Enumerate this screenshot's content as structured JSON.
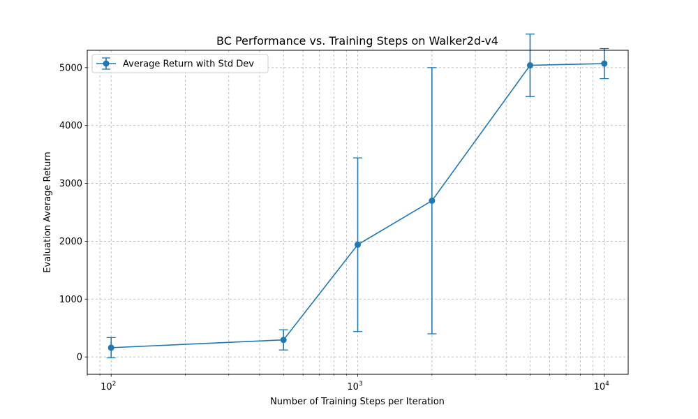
{
  "chart_data": {
    "type": "line",
    "title": "BC Performance vs. Training Steps on Walker2d-v4",
    "xlabel": "Number of Training Steps per Iteration",
    "ylabel": "Evaluation Average Return",
    "xscale": "log",
    "xlim": [
      80,
      12500
    ],
    "ylim": [
      -300,
      5300
    ],
    "x_ticks": [
      100,
      1000,
      10000
    ],
    "x_tick_labels": [
      "10",
      "10",
      "10"
    ],
    "x_tick_exponents": [
      "2",
      "3",
      "4"
    ],
    "y_ticks": [
      0,
      1000,
      2000,
      3000,
      4000,
      5000
    ],
    "y_tick_labels": [
      "0",
      "1000",
      "2000",
      "3000",
      "4000",
      "5000"
    ],
    "grid": true,
    "grid_which": "both",
    "legend_position": "top-left",
    "series": [
      {
        "name": "Average Return with Std Dev",
        "color": "#1f77b4",
        "marker": "circle",
        "errorbars": true,
        "x": [
          100,
          500,
          1000,
          2000,
          5000,
          10000
        ],
        "y": [
          160,
          295,
          1940,
          2700,
          5040,
          5070
        ],
        "std": [
          175,
          175,
          1500,
          2300,
          540,
          260
        ]
      }
    ]
  }
}
